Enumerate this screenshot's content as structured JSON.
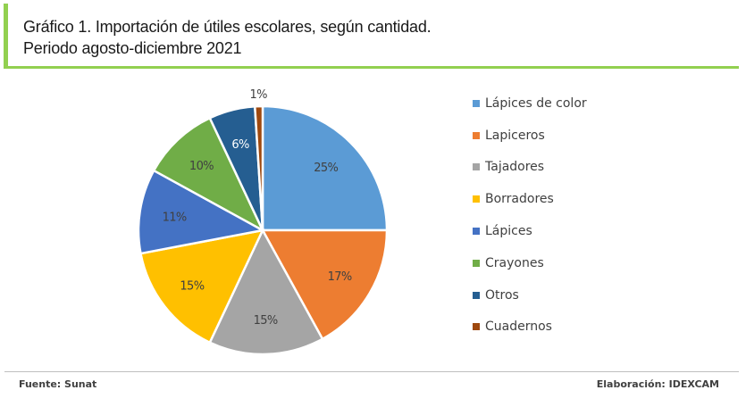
{
  "header": {
    "title_line1": "Gráfico 1. Importación de útiles escolares, según cantidad.",
    "title_line2": "Periodo agosto-diciembre 2021",
    "accent_color": "#92d050"
  },
  "chart_data": {
    "type": "pie",
    "title": "Gráfico 1. Importación de útiles escolares, según cantidad. Periodo agosto-diciembre 2021",
    "categories": [
      "Lápices de color",
      "Lapiceros",
      "Tajadores",
      "Borradores",
      "Lápices",
      "Crayones",
      "Otros",
      "Cuadernos"
    ],
    "values": [
      25,
      17,
      15,
      15,
      11,
      10,
      6,
      1
    ],
    "labels": [
      "25%",
      "17%",
      "15%",
      "15%",
      "11%",
      "10%",
      "6%",
      "1%"
    ],
    "colors": [
      "#5b9bd5",
      "#ed7d31",
      "#a5a5a5",
      "#ffc000",
      "#4472c4",
      "#70ad47",
      "#255e91",
      "#9e480e"
    ],
    "legend_position": "right",
    "start_angle": "top, clockwise"
  },
  "footer": {
    "source": "Fuente:  Sunat",
    "credit": "Elaboración: IDEXCAM"
  }
}
